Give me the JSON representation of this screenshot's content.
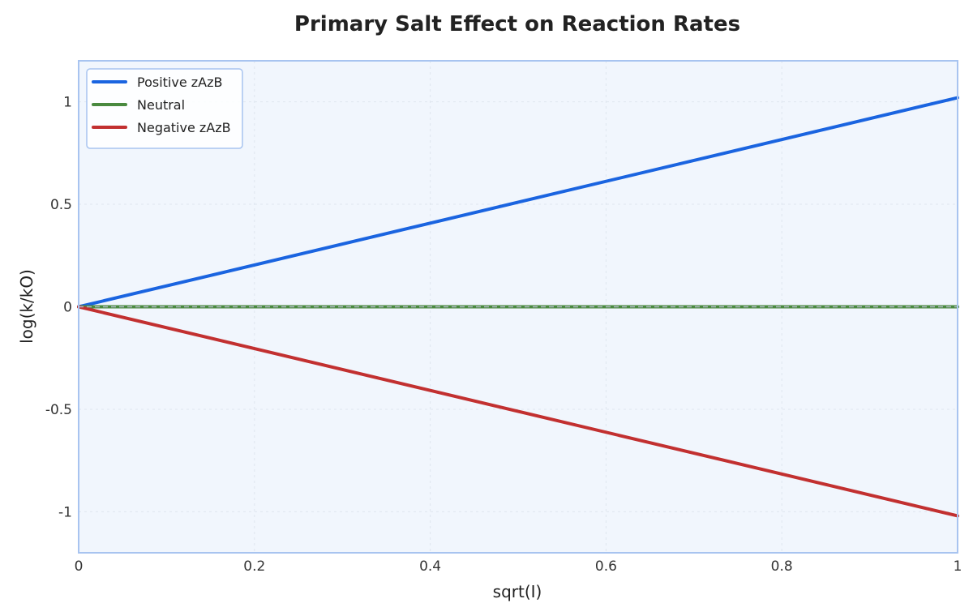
{
  "chart_data": {
    "type": "line",
    "title": "Primary Salt Effect on Reaction Rates",
    "xlabel": "sqrt(I)",
    "ylabel": "log(k/kO)",
    "xlim": [
      0,
      1
    ],
    "ylim": [
      -1.2,
      1.2
    ],
    "xticks": [
      0,
      0.2,
      0.4,
      0.6,
      0.8,
      1
    ],
    "xtick_labels": [
      "0",
      "0.2",
      "0.4",
      "0.6",
      "0.8",
      "1"
    ],
    "yticks": [
      -1,
      -0.5,
      0,
      0.5,
      1
    ],
    "ytick_labels": [
      "-1",
      "-0.5",
      "0",
      "0.5",
      "1"
    ],
    "grid": true,
    "legend_position": "top-left",
    "reference_line": {
      "y": 0,
      "style": "dashed",
      "color": "#b0b8c4"
    },
    "series": [
      {
        "name": "Positive zAzB",
        "color": "#1a64e0",
        "x": [
          0,
          1
        ],
        "y": [
          0,
          1.02
        ]
      },
      {
        "name": "Neutral",
        "color": "#4a8a3f",
        "x": [
          0,
          1
        ],
        "y": [
          0,
          0
        ]
      },
      {
        "name": "Negative zAzB",
        "color": "#c23030",
        "x": [
          0,
          1
        ],
        "y": [
          0,
          -1.02
        ]
      }
    ],
    "colors": {
      "plot_background": "#f1f6fd",
      "plot_border": "#a8c4f0",
      "grid": "#dfe6ef"
    }
  }
}
